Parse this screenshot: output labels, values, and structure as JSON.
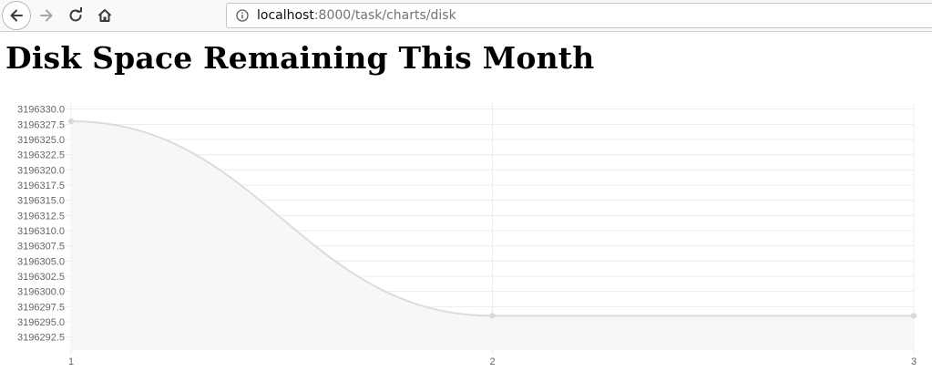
{
  "browser": {
    "url_host": "localhost",
    "url_path": ":8000/task/charts/disk",
    "icons": {
      "back": "arrow-left-icon",
      "forward": "arrow-right-icon",
      "reload": "reload-icon",
      "home": "home-icon",
      "site_info": "info-icon"
    }
  },
  "page": {
    "title": "Disk Space Remaining This Month"
  },
  "chart_data": {
    "type": "area",
    "title": "",
    "xlabel": "",
    "ylabel": "",
    "x": [
      1,
      2,
      3
    ],
    "series": [
      {
        "values": [
          3196328,
          3196296,
          3196296
        ]
      }
    ],
    "x_ticks": [
      "1",
      "2",
      "3"
    ],
    "y_ticks": [
      "3196292.5",
      "3196295.0",
      "3196297.5",
      "3196300.0",
      "3196302.5",
      "3196305.0",
      "3196307.5",
      "3196310.0",
      "3196312.5",
      "3196315.0",
      "3196317.5",
      "3196320.0",
      "3196322.5",
      "3196325.0",
      "3196327.5",
      "3196330.0"
    ],
    "xlim": [
      1,
      3
    ],
    "ylim": [
      3196290.5,
      3196331
    ],
    "grid": true,
    "legend": "none",
    "colors": {
      "line": "#dcdcdc",
      "fill": "#f7f7f7",
      "point": "#dcdcdc",
      "grid": "#ececec"
    }
  }
}
